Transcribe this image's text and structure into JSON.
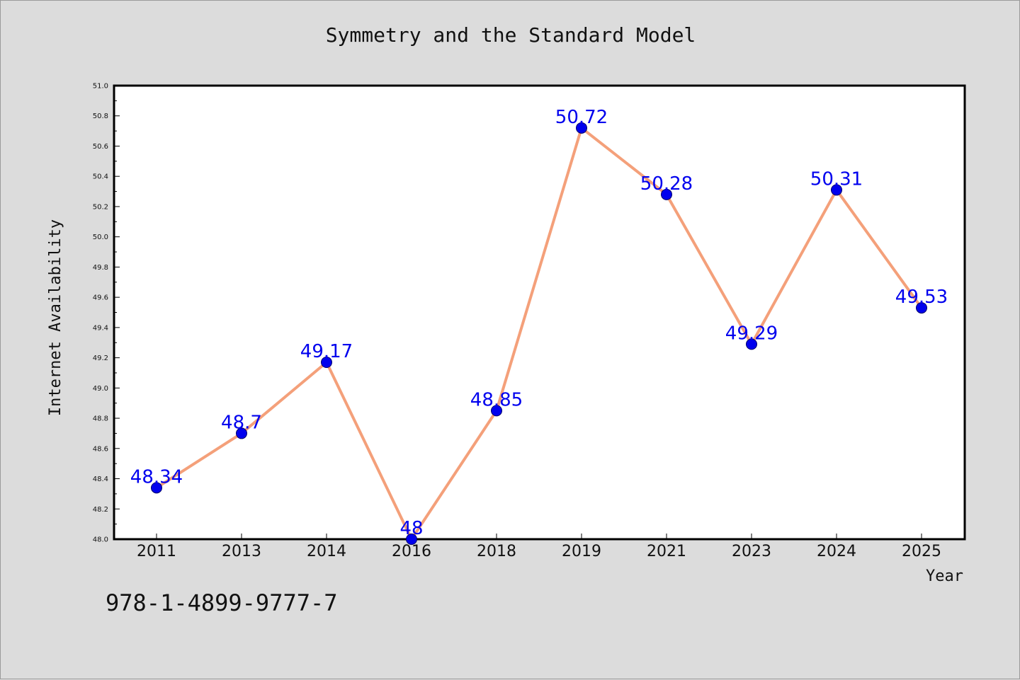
{
  "chart_data": {
    "type": "line",
    "title": "Symmetry and the Standard Model",
    "xlabel": "Year",
    "ylabel": "Internet Availability",
    "categories": [
      "2011",
      "2013",
      "2014",
      "2016",
      "2018",
      "2019",
      "2021",
      "2023",
      "2024",
      "2025"
    ],
    "series": [
      {
        "values": [
          48.34,
          48.7,
          49.17,
          48.0,
          48.85,
          50.72,
          50.28,
          49.29,
          50.31,
          49.53
        ],
        "labels": [
          "48.34",
          "48.7",
          "49.17",
          "48",
          "48.85",
          "50.72",
          "50.28",
          "49.29",
          "50.31",
          "49.53"
        ]
      }
    ],
    "ylim": [
      48.0,
      51.0
    ],
    "yticks": [
      "48.0",
      "48.2",
      "48.4",
      "48.6",
      "48.8",
      "49.0",
      "49.2",
      "49.4",
      "49.6",
      "49.8",
      "50.0",
      "50.2",
      "50.4",
      "50.6",
      "50.8",
      "51.0"
    ],
    "grid": false,
    "legend": "none",
    "colors": {
      "line": "#f4a07a",
      "marker": "#0000ee",
      "label": "#0000ee"
    }
  },
  "footer": {
    "isbn": "978-1-4899-9777-7"
  }
}
